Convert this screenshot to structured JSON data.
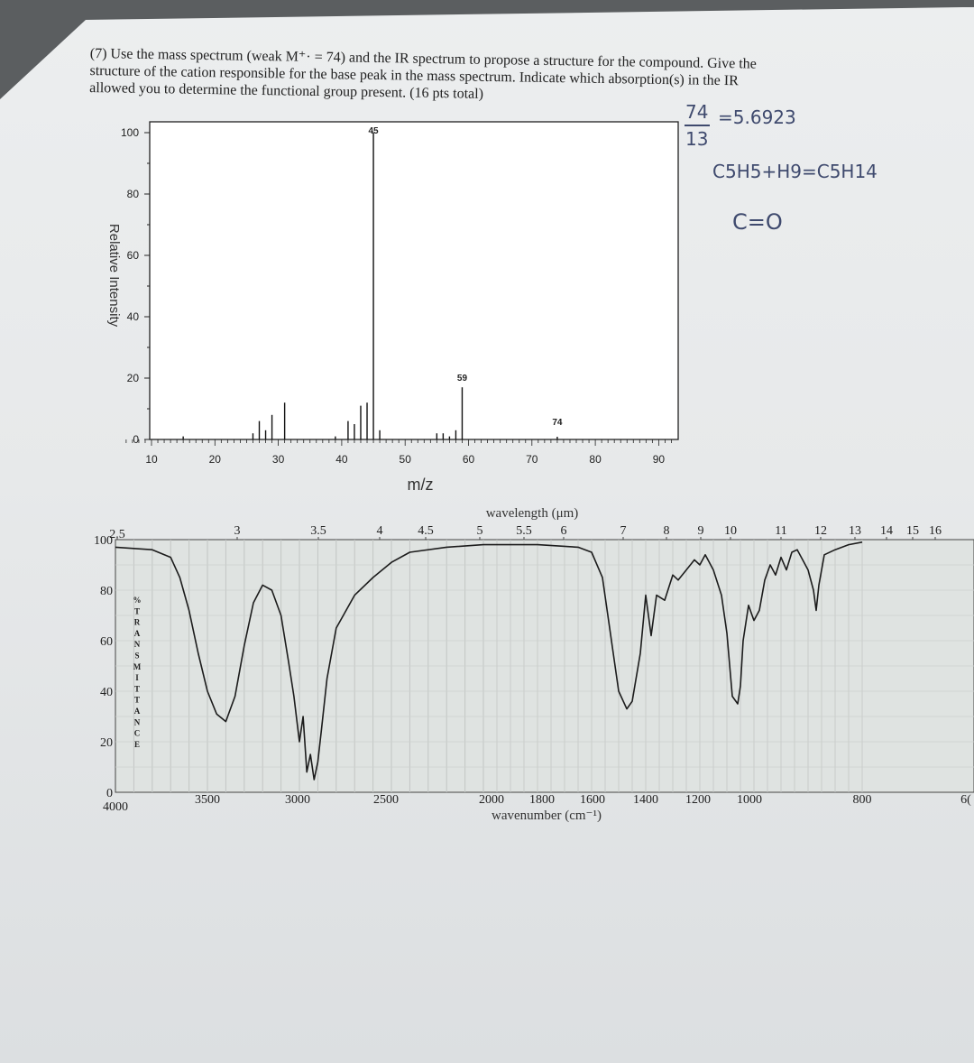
{
  "question": {
    "lines": [
      "(7) Use the mass spectrum (weak M⁺· = 74) and the IR spectrum to propose a structure for the compound. Give the",
      "structure of the cation responsible for the base peak in the mass spectrum. Indicate which absorption(s) in the IR",
      "allowed you to determine the functional group present. (16 pts total)"
    ]
  },
  "handwriting": {
    "fraction_numerator": "74",
    "fraction_denominator": "13",
    "fraction_result": "=5.6923",
    "formula": "C5H5+H9=C5H14",
    "functional_group": "C=O"
  },
  "chart_data": [
    {
      "type": "bar",
      "ylabel": "Relative Intensity",
      "xlabel": "m/z",
      "xlim": [
        5,
        100
      ],
      "ylim": [
        0,
        100
      ],
      "x_ticks": [
        "10",
        "20",
        "30",
        "40",
        "50",
        "60",
        "70",
        "80",
        "90"
      ],
      "y_ticks": [
        "0",
        "20",
        "40",
        "60",
        "80",
        "100"
      ],
      "peak_labels": [
        "45",
        "59",
        "74"
      ],
      "peaks": [
        {
          "mz": 15,
          "intensity": 1
        },
        {
          "mz": 26,
          "intensity": 2
        },
        {
          "mz": 27,
          "intensity": 6
        },
        {
          "mz": 28,
          "intensity": 3
        },
        {
          "mz": 29,
          "intensity": 8
        },
        {
          "mz": 31,
          "intensity": 12
        },
        {
          "mz": 39,
          "intensity": 1
        },
        {
          "mz": 41,
          "intensity": 6
        },
        {
          "mz": 42,
          "intensity": 5
        },
        {
          "mz": 43,
          "intensity": 11
        },
        {
          "mz": 44,
          "intensity": 12
        },
        {
          "mz": 45,
          "intensity": 100
        },
        {
          "mz": 46,
          "intensity": 3
        },
        {
          "mz": 55,
          "intensity": 2
        },
        {
          "mz": 56,
          "intensity": 2
        },
        {
          "mz": 57,
          "intensity": 1
        },
        {
          "mz": 58,
          "intensity": 3
        },
        {
          "mz": 59,
          "intensity": 17
        },
        {
          "mz": 74,
          "intensity": 0.6
        }
      ]
    },
    {
      "type": "line",
      "title": "wavelength (μm)",
      "xlabel": "wavenumber (cm⁻¹)",
      "ylabel": "% TRANSMITTANCE",
      "ylim": [
        0,
        100
      ],
      "y_ticks": [
        "0",
        "20",
        "40",
        "60",
        "80",
        "100"
      ],
      "wavenumber_ticks": [
        "4000",
        "3500",
        "3000",
        "2500",
        "2000",
        "1800",
        "1600",
        "1400",
        "1200",
        "1000",
        "800",
        "6("
      ],
      "wavelength_ticks": [
        "2.5",
        "3",
        "3.5",
        "4",
        "4.5",
        "5",
        "5.5",
        "6",
        "7",
        "8",
        "9",
        "10",
        "11",
        "12",
        "13",
        "14",
        "15",
        "16"
      ],
      "points": [
        [
          4000,
          97
        ],
        [
          3800,
          96
        ],
        [
          3700,
          93
        ],
        [
          3650,
          85
        ],
        [
          3600,
          72
        ],
        [
          3550,
          55
        ],
        [
          3500,
          40
        ],
        [
          3450,
          31
        ],
        [
          3400,
          28
        ],
        [
          3350,
          38
        ],
        [
          3300,
          58
        ],
        [
          3250,
          75
        ],
        [
          3200,
          82
        ],
        [
          3150,
          80
        ],
        [
          3100,
          70
        ],
        [
          3060,
          52
        ],
        [
          3030,
          38
        ],
        [
          3000,
          20
        ],
        [
          2980,
          30
        ],
        [
          2960,
          8
        ],
        [
          2940,
          15
        ],
        [
          2920,
          5
        ],
        [
          2900,
          12
        ],
        [
          2880,
          25
        ],
        [
          2850,
          45
        ],
        [
          2800,
          65
        ],
        [
          2700,
          78
        ],
        [
          2600,
          85
        ],
        [
          2500,
          91
        ],
        [
          2400,
          95
        ],
        [
          2200,
          97
        ],
        [
          2000,
          98
        ],
        [
          1800,
          98
        ],
        [
          1650,
          97
        ],
        [
          1600,
          95
        ],
        [
          1560,
          85
        ],
        [
          1500,
          40
        ],
        [
          1470,
          33
        ],
        [
          1450,
          36
        ],
        [
          1420,
          55
        ],
        [
          1400,
          78
        ],
        [
          1380,
          62
        ],
        [
          1360,
          78
        ],
        [
          1330,
          76
        ],
        [
          1300,
          86
        ],
        [
          1280,
          84
        ],
        [
          1250,
          88
        ],
        [
          1220,
          92
        ],
        [
          1200,
          90
        ],
        [
          1180,
          94
        ],
        [
          1150,
          88
        ],
        [
          1120,
          78
        ],
        [
          1100,
          63
        ],
        [
          1080,
          38
        ],
        [
          1060,
          35
        ],
        [
          1050,
          42
        ],
        [
          1040,
          60
        ],
        [
          1020,
          74
        ],
        [
          1000,
          68
        ],
        [
          980,
          72
        ],
        [
          960,
          84
        ],
        [
          940,
          90
        ],
        [
          920,
          86
        ],
        [
          900,
          93
        ],
        [
          880,
          88
        ],
        [
          860,
          95
        ],
        [
          840,
          96
        ],
        [
          820,
          92
        ],
        [
          800,
          88
        ],
        [
          780,
          80
        ],
        [
          770,
          72
        ],
        [
          760,
          82
        ],
        [
          740,
          94
        ],
        [
          700,
          96
        ],
        [
          650,
          98
        ],
        [
          600,
          99
        ]
      ]
    }
  ]
}
